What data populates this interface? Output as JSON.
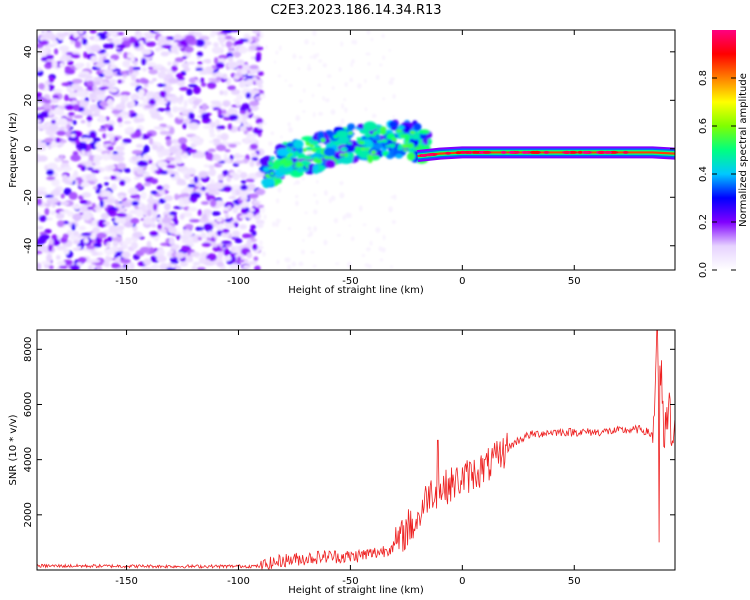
{
  "title": "C2E3.2023.186.14.34.R13",
  "chart_data": [
    {
      "type": "heatmap",
      "xlabel": "Height of straight line (km)",
      "ylabel": "Frequency (Hz)",
      "xlim": [
        -190,
        95
      ],
      "ylim": [
        -50,
        49
      ],
      "xticks": [
        -150,
        -100,
        -50,
        0,
        50
      ],
      "yticks": [
        -40,
        -20,
        0,
        20,
        40
      ],
      "colorbar": {
        "label": "Normalized spectral amplitude",
        "range": [
          0,
          1
        ],
        "ticks": [
          0.0,
          0.2,
          0.4,
          0.6,
          0.8
        ],
        "colormap": [
          "#ffffff",
          "#e6d2ff",
          "#8000ff",
          "#0000ff",
          "#00c8ff",
          "#00ff80",
          "#80ff00",
          "#ffff00",
          "#ff8000",
          "#ff0000",
          "#ff0080"
        ]
      },
      "features": [
        {
          "name": "noise",
          "x_range": [
            -190,
            -90
          ],
          "y_range": [
            -50,
            49
          ],
          "amplitude": 0.15
        },
        {
          "name": "rising_band",
          "x": [
            -88,
            -80,
            -70,
            -60,
            -50,
            -40,
            -30,
            -20,
            -15
          ],
          "y": [
            -10,
            -6,
            -3,
            0,
            2,
            3,
            4,
            3,
            1
          ],
          "amplitude": 0.45
        },
        {
          "name": "carrier",
          "x": [
            -20,
            -10,
            0,
            20,
            40,
            60,
            85,
            95
          ],
          "y": [
            -3,
            -2,
            -1.5,
            -1.5,
            -1.5,
            -1.5,
            -1.5,
            -2
          ],
          "amplitude": 0.9
        }
      ]
    },
    {
      "type": "line",
      "xlabel": "Height of straight line (km)",
      "ylabel": "SNR (10 * v/v)",
      "xlim": [
        -190,
        95
      ],
      "ylim": [
        0,
        8700
      ],
      "xticks": [
        -150,
        -100,
        -50,
        0,
        50
      ],
      "yticks": [
        2000,
        4000,
        6000,
        8000
      ],
      "color": "#ee2222",
      "x": [
        -190,
        -150,
        -120,
        -90,
        -80,
        -70,
        -60,
        -50,
        -40,
        -35,
        -30,
        -25,
        -20,
        -15,
        -10,
        -5,
        0,
        5,
        10,
        15,
        20,
        25,
        30,
        40,
        50,
        60,
        70,
        80,
        85,
        87,
        89,
        91,
        95
      ],
      "values": [
        150,
        140,
        130,
        140,
        350,
        420,
        500,
        480,
        600,
        700,
        900,
        1400,
        1800,
        2800,
        2900,
        3100,
        3300,
        3500,
        3700,
        4000,
        4400,
        4700,
        4900,
        5000,
        5000,
        5000,
        5050,
        5100,
        4900,
        8000,
        4800,
        5100,
        5200
      ],
      "spikes": [
        {
          "x": -24,
          "value": 2200
        },
        {
          "x": -11,
          "value": 4700
        },
        {
          "x": -7,
          "value": 2600
        },
        {
          "x": 87,
          "value": 8700
        },
        {
          "x": 88,
          "value": 1000
        },
        {
          "x": 89,
          "value": 7600
        }
      ]
    }
  ]
}
